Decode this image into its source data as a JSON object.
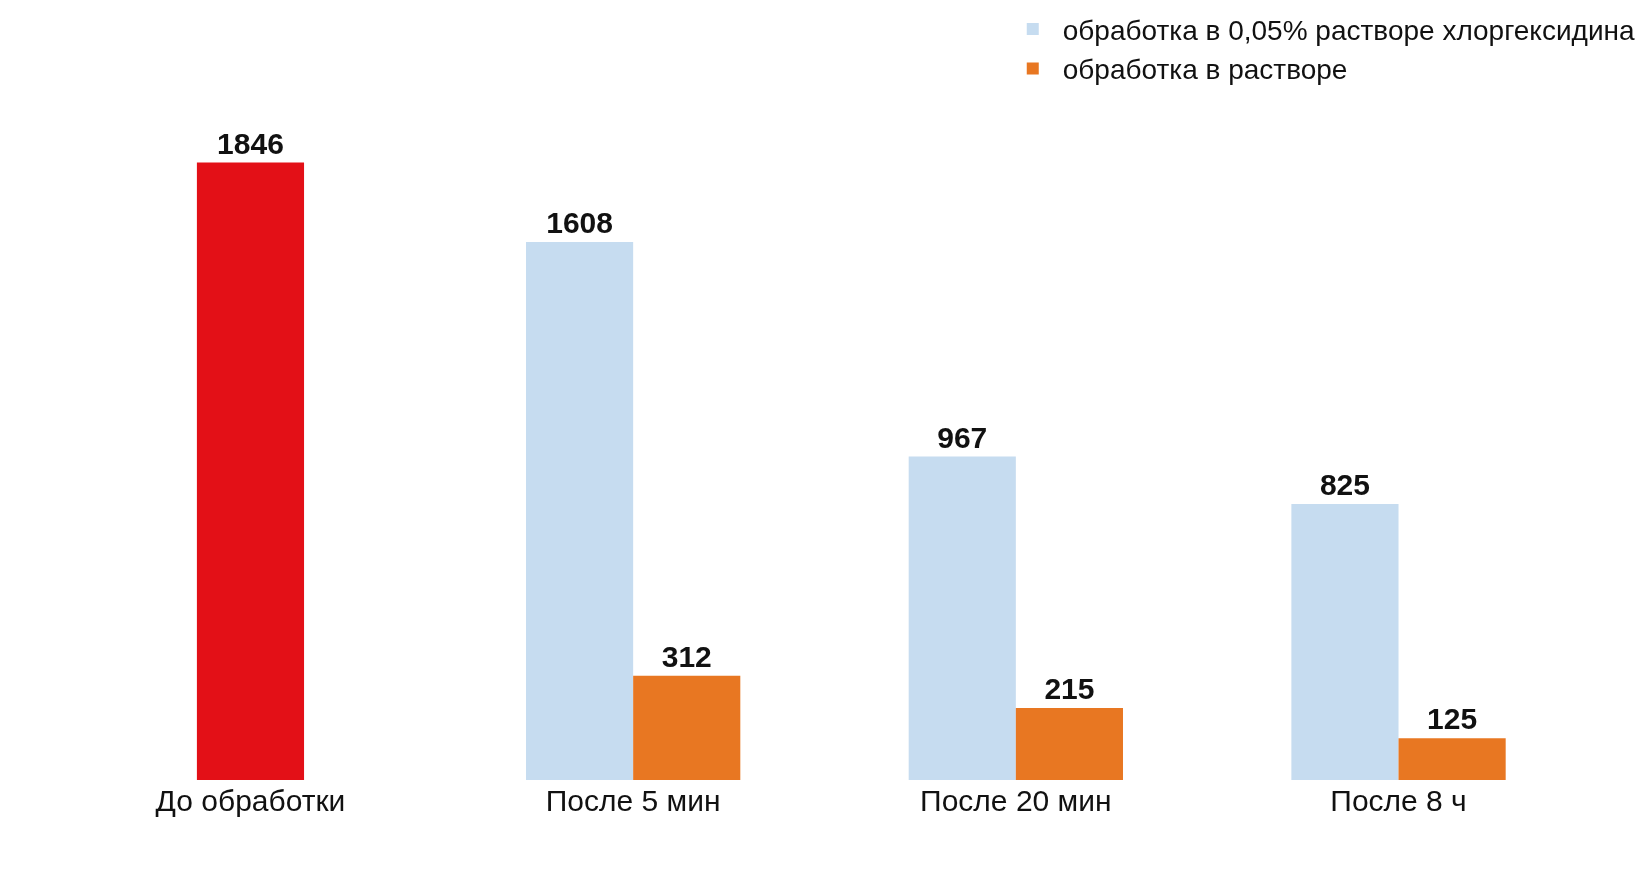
{
  "chart_data": {
    "type": "bar",
    "categories": [
      "До обработки",
      "После 5 мин",
      "После 20 мин",
      "После 8 ч"
    ],
    "series": [
      {
        "color": "#e31017",
        "values": [
          1846,
          null,
          null,
          null
        ]
      },
      {
        "name": "обработка в 0,05% растворе хлоргексидина",
        "color": "#c6dcf0",
        "values": [
          null,
          1608,
          967,
          825
        ]
      },
      {
        "name": "обработка в растворе",
        "color": "#e87722",
        "values": [
          null,
          312,
          215,
          125
        ]
      }
    ],
    "data_labels": true,
    "legend": "top right"
  }
}
